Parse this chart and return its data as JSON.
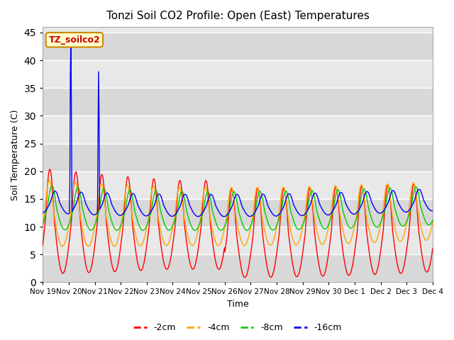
{
  "title": "Tonzi Soil CO2 Profile: Open (East) Temperatures",
  "xlabel": "Time",
  "ylabel": "Soil Temperature (C)",
  "ylim": [
    0,
    46
  ],
  "yticks": [
    0,
    5,
    10,
    15,
    20,
    25,
    30,
    35,
    40,
    45
  ],
  "series_colors": {
    "-2cm": "#ff0000",
    "-4cm": "#ffa500",
    "-8cm": "#00cc00",
    "-16cm": "#0000ff"
  },
  "annotation_text": "TZ_soilco2",
  "annotation_bg": "#ffffcc",
  "annotation_border": "#cc8800",
  "annotation_text_color": "#cc0000",
  "plot_bg_color": "#e8e8e8",
  "legend_labels": [
    "-2cm",
    "-4cm",
    "-8cm",
    "-16cm"
  ],
  "legend_colors": [
    "#ff0000",
    "#ffa500",
    "#00cc00",
    "#0000ff"
  ],
  "n_days": 15,
  "hrs_per_day": 48
}
